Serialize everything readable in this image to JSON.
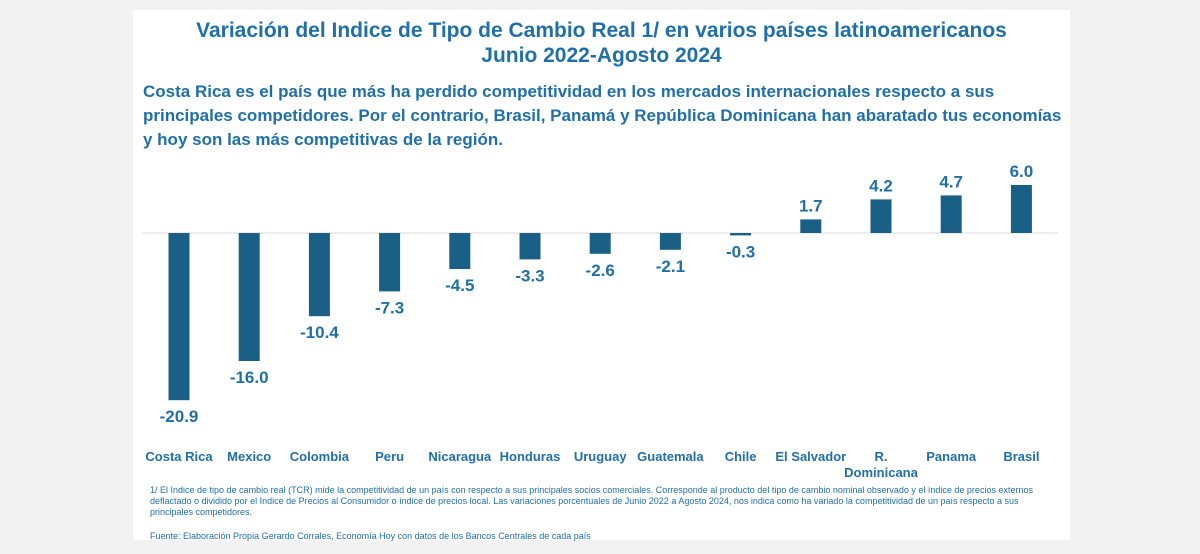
{
  "chart_data": {
    "type": "bar",
    "title": "Variación del Indice de Tipo de Cambio Real 1/ en varios países latinoamericanos",
    "subtitle": "Junio 2022-Agosto 2024",
    "description": "Costa Rica es el país que más ha perdido competitividad en los mercados internacionales respecto a sus principales competidores. Por el contrario, Brasil, Panamá y República Dominicana han abaratado tus economías y hoy son las más competitivas de la región.",
    "categories": [
      "Costa Rica",
      "Mexico",
      "Colombia",
      "Peru",
      "Nicaragua",
      "Honduras",
      "Uruguay",
      "Guatemala",
      "Chile",
      "El Salvador",
      "R. Dominicana",
      "Panama",
      "Brasil"
    ],
    "category_lines": [
      [
        "Costa Rica"
      ],
      [
        "Mexico"
      ],
      [
        "Colombia"
      ],
      [
        "Peru"
      ],
      [
        "Nicaragua"
      ],
      [
        "Honduras"
      ],
      [
        "Uruguay"
      ],
      [
        "Guatemala"
      ],
      [
        "Chile"
      ],
      [
        "El Salvador"
      ],
      [
        "R.",
        "Dominicana"
      ],
      [
        "Panama"
      ],
      [
        "Brasil"
      ]
    ],
    "values": [
      -20.9,
      -16.0,
      -10.4,
      -7.3,
      -4.5,
      -3.3,
      -2.6,
      -2.1,
      -0.3,
      1.7,
      4.2,
      4.7,
      6.0
    ],
    "value_labels": [
      "-20.9",
      "-16.0",
      "-10.4",
      "-7.3",
      "-4.5",
      "-3.3",
      "-2.6",
      "-2.1",
      "-0.3",
      "1.7",
      "4.2",
      "4.7",
      "6.0"
    ],
    "xlabel": "",
    "ylabel": "",
    "ylim": [
      -20.9,
      6.0
    ],
    "grid": false,
    "legend": "none",
    "bar_color": "#1a5f86"
  },
  "footnote": "1/ El Indice de tipo de cambio real (TCR) mide la competitividad de un país con respecto a sus principales socios comerciales. Corresponde al producto del tipo de cambio nominal observado y el índice de precios externos deflactado o dividido por el Indice de Precios al Consumidor o índice de precios local. Las variaciones porcentuales de Junio 2022 a Agosto 2024, nos indica como ha variado la competitividad de un país respecto a sus principales competidores.",
  "source": "Fuente: Elaboración Propia Gerardo Corrales, Economía Hoy con datos de los Bancos Centrales de cada país",
  "colors": {
    "text": "#1f6fa8",
    "bar": "#1a5f86",
    "label": "#1f6fa8"
  }
}
